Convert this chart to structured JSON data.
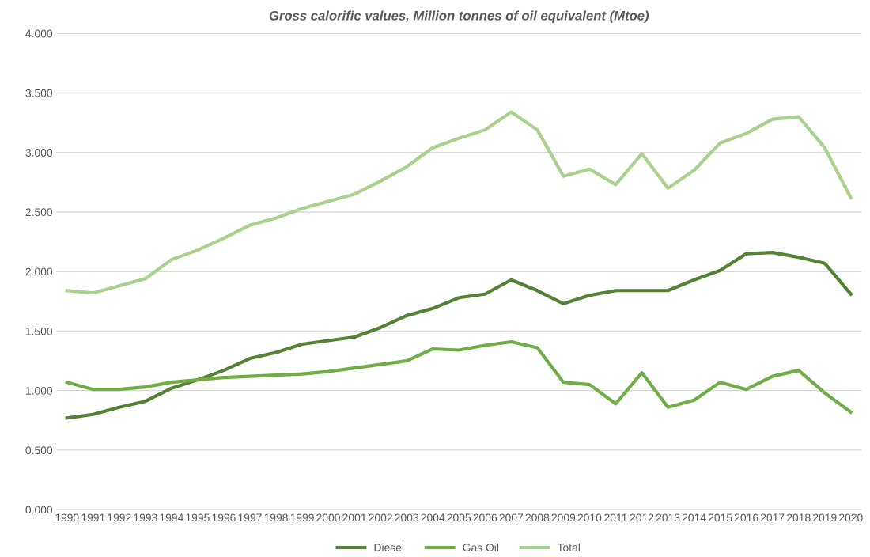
{
  "chart_data": {
    "type": "line",
    "title": "Gross calorific values, Million tonnes of oil equivalent (Mtoe)",
    "categories": [
      "1990",
      "1991",
      "1992",
      "1993",
      "1994",
      "1995",
      "1996",
      "1997",
      "1998",
      "1999",
      "2000",
      "2001",
      "2002",
      "2003",
      "2004",
      "2005",
      "2006",
      "2007",
      "2008",
      "2009",
      "2010",
      "2011",
      "2012",
      "2013",
      "2014",
      "2015",
      "2016",
      "2017",
      "2018",
      "2019",
      "2020"
    ],
    "series": [
      {
        "name": "Diesel",
        "color": "#548235",
        "values": [
          0.77,
          0.8,
          0.86,
          0.91,
          1.02,
          1.09,
          1.17,
          1.27,
          1.32,
          1.39,
          1.42,
          1.45,
          1.53,
          1.63,
          1.69,
          1.78,
          1.81,
          1.93,
          1.84,
          1.73,
          1.8,
          1.84,
          1.84,
          1.84,
          1.93,
          2.01,
          2.15,
          2.16,
          2.12,
          2.07,
          1.81
        ]
      },
      {
        "name": "Gas Oil",
        "color": "#70ad47",
        "values": [
          1.07,
          1.01,
          1.01,
          1.03,
          1.07,
          1.09,
          1.11,
          1.12,
          1.13,
          1.14,
          1.16,
          1.19,
          1.22,
          1.25,
          1.35,
          1.34,
          1.38,
          1.41,
          1.36,
          1.07,
          1.05,
          0.89,
          1.15,
          0.86,
          0.92,
          1.07,
          1.01,
          1.12,
          1.17,
          0.98,
          0.82
        ]
      },
      {
        "name": "Total",
        "color": "#a9d18e",
        "values": [
          1.84,
          1.82,
          1.88,
          1.94,
          2.1,
          2.18,
          2.28,
          2.39,
          2.45,
          2.53,
          2.59,
          2.65,
          2.76,
          2.88,
          3.04,
          3.12,
          3.19,
          3.34,
          3.19,
          2.8,
          2.86,
          2.73,
          2.99,
          2.7,
          2.85,
          3.08,
          3.16,
          3.28,
          3.3,
          3.04,
          2.62
        ]
      }
    ],
    "ylim": [
      0,
      4
    ],
    "yticks": [
      {
        "value": 0,
        "label": "0.000"
      },
      {
        "value": 0.5,
        "label": "0.500"
      },
      {
        "value": 1,
        "label": "1.000"
      },
      {
        "value": 1.5,
        "label": "1.500"
      },
      {
        "value": 2,
        "label": "2.000"
      },
      {
        "value": 2.5,
        "label": "2.500"
      },
      {
        "value": 3,
        "label": "3.000"
      },
      {
        "value": 3.5,
        "label": "3.500"
      },
      {
        "value": 4,
        "label": "4.000"
      }
    ],
    "grid": "y",
    "legend": "bottom",
    "marker": "none",
    "line_style": "solid"
  }
}
